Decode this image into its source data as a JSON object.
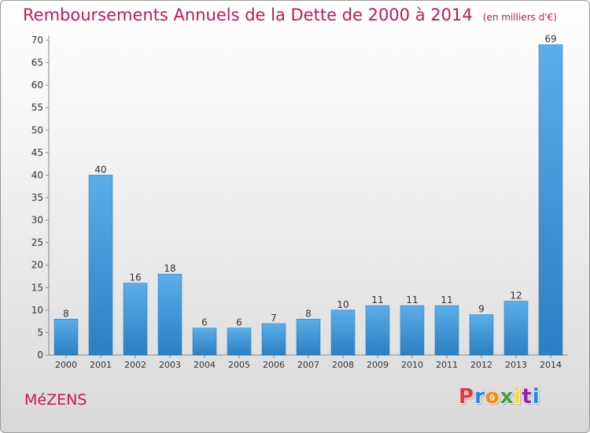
{
  "header": {
    "title": "Remboursements Annuels de la Dette de 2000 à 2014",
    "unit": "(en milliers d'€)"
  },
  "footer": {
    "commune": "MéZENS",
    "brand": "Proxiti",
    "brand_colors": [
      "#e53935",
      "#1e88e5",
      "#fb8c00",
      "#43a047",
      "#fdd835",
      "#8e24aa",
      "#1e88e5"
    ]
  },
  "chart_data": {
    "type": "bar",
    "title": "Remboursements Annuels de la Dette de 2000 à 2014",
    "subtitle": "(en milliers d'€)",
    "categories": [
      "2000",
      "2001",
      "2002",
      "2003",
      "2004",
      "2005",
      "2006",
      "2007",
      "2008",
      "2009",
      "2010",
      "2011",
      "2012",
      "2013",
      "2014"
    ],
    "values": [
      8,
      40,
      16,
      18,
      6,
      6,
      7,
      8,
      10,
      11,
      11,
      11,
      9,
      12,
      69
    ],
    "ylim": [
      0,
      70
    ],
    "yticks": [
      0,
      5,
      10,
      15,
      20,
      25,
      30,
      35,
      40,
      45,
      50,
      55,
      60,
      65,
      70
    ],
    "xlabel": "",
    "ylabel": "",
    "grid": false,
    "bar_color_top": "#5aaee9",
    "bar_color_bottom": "#2b7fc3"
  }
}
